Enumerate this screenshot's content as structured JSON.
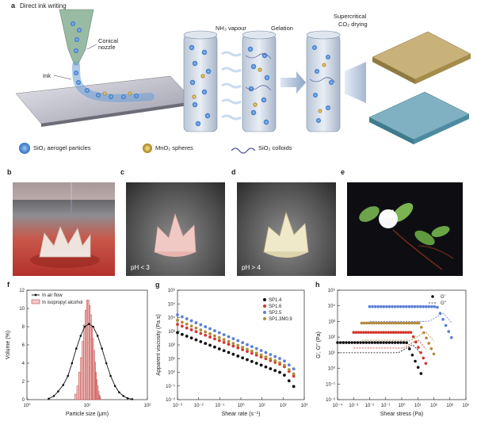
{
  "panel_a": {
    "label": "a",
    "title": "Direct ink writing",
    "nozzle_label": "Conical nozzle",
    "ink_label": "Ink",
    "step1": "NH₃ vapour",
    "step2": "Gelation",
    "step3_line1": "Supercritical",
    "step3_line2": "CO₂ drying",
    "legend": [
      "SiO₂ aerogel particles",
      "MnO₂ spheres",
      "SiO₂ colloids"
    ]
  },
  "panel_b": {
    "label": "b"
  },
  "panel_c": {
    "label": "c",
    "caption": "pH < 3"
  },
  "panel_d": {
    "label": "d",
    "caption": "pH > 4"
  },
  "panel_e": {
    "label": "e"
  },
  "colors": {
    "sio2_blue": "#3f7fd0",
    "mno2_gold": "#c9a227",
    "bar_red": "#c44a4a",
    "black": "#111111"
  },
  "chart_data": [
    {
      "panel": "f",
      "type": "bar",
      "ylabel": "Volume (%)",
      "xlabel": "Particle size (μm)",
      "xscale": "log",
      "xlim": [
        1,
        100
      ],
      "ylim": [
        0,
        12
      ],
      "xticks": [
        "10⁰",
        "10¹",
        "10²"
      ],
      "yticks": [
        "0",
        "2",
        "4",
        "6",
        "8",
        "10",
        "12"
      ],
      "legend": [
        "In air flow",
        "In isopropyl alcohol"
      ],
      "series": [
        {
          "name": "In air flow",
          "kind": "line",
          "x": [
            2.3,
            2.8,
            3.3,
            4,
            4.8,
            5.6,
            6.6,
            7.8,
            9.1,
            10.7,
            12.6,
            14.9,
            17.6,
            20.8,
            24.5,
            29,
            34,
            40,
            47,
            56
          ],
          "y": [
            0.1,
            0.4,
            0.9,
            1.6,
            2.6,
            4,
            5.6,
            7,
            8,
            8.3,
            8,
            7,
            5.6,
            4,
            2.6,
            1.5,
            0.8,
            0.4,
            0.15,
            0.05
          ]
        },
        {
          "name": "In isopropyl alcohol",
          "kind": "bars",
          "x": [
            6.5,
            7,
            7.5,
            8,
            8.5,
            9,
            9.5,
            10,
            10.5,
            11,
            11.5,
            12,
            12.5,
            13,
            13.5,
            14,
            14.5,
            15,
            15.5,
            16,
            16.5
          ],
          "y": [
            0.6,
            1.5,
            3,
            4.6,
            6.4,
            8.2,
            9.8,
            10.9,
            10.9,
            10.3,
            9.3,
            8,
            6.7,
            5.4,
            4.1,
            3,
            2.2,
            1.5,
            0.9,
            0.5,
            0.3
          ]
        }
      ]
    },
    {
      "panel": "g",
      "type": "scatter",
      "ylabel": "Apparent viscosity (Pa s)",
      "xlabel": "Shear rate (s⁻¹)",
      "xscale": "log",
      "yscale": "log",
      "xlim": [
        0.001,
        1000
      ],
      "ylim": [
        0.01,
        1000000
      ],
      "xticks": [
        "10⁻³",
        "10⁻²",
        "10⁻¹",
        "10⁰",
        "10¹",
        "10²",
        "10³"
      ],
      "yticks": [
        "10⁻²",
        "10⁻¹",
        "10⁰",
        "10¹",
        "10²",
        "10³",
        "10⁴",
        "10⁵",
        "10⁶"
      ],
      "series": [
        {
          "name": "SP1.4",
          "color": "#111111",
          "logy0": 2.9,
          "logy_end": -0.1,
          "drop": 0.8
        },
        {
          "name": "SP1.6",
          "color": "#d2362b",
          "logy0": 3.5,
          "logy_end": 0.5,
          "drop": 0.6
        },
        {
          "name": "SP2.5",
          "color": "#5a7fd6",
          "logy0": 4.2,
          "logy_end": 0.9,
          "drop": 0.4
        },
        {
          "name": "SP1.3M0.9",
          "color": "#b08a3a",
          "logy0": 3.8,
          "logy_end": 0.6,
          "drop": 0.5
        }
      ]
    },
    {
      "panel": "h",
      "type": "scatter",
      "ylabel": "G′, G″ (Pa)",
      "xlabel": "Shear stress (Pa)",
      "xscale": "log",
      "yscale": "log",
      "xlim": [
        0.0001,
        10000
      ],
      "ylim": [
        0.01,
        100000
      ],
      "xticks": [
        "10⁻⁴",
        "10⁻³",
        "10⁻²",
        "10⁻¹",
        "10⁰",
        "10¹",
        "10²",
        "10³",
        "10⁴"
      ],
      "yticks": [
        "10⁻²",
        "10⁻¹",
        "10⁰",
        "10¹",
        "10²",
        "10³",
        "10⁴",
        "10⁵"
      ],
      "legend": [
        "G′",
        "G″"
      ],
      "series": [
        {
          "name": "black",
          "color": "#111111",
          "logG1": 1.65,
          "logG2": 1.0,
          "yield_logx": 0.3
        },
        {
          "name": "red",
          "color": "#d2362b",
          "logG1": 2.3,
          "logG2": 1.3,
          "yield_logx": 0.6
        },
        {
          "name": "blue",
          "color": "#5a7fd6",
          "logG1": 3.95,
          "logG2": 3.0,
          "yield_logx": 2.2
        },
        {
          "name": "gold",
          "color": "#b08a3a",
          "logG1": 2.9,
          "logG2": 1.8,
          "yield_logx": 1.1
        }
      ]
    }
  ]
}
